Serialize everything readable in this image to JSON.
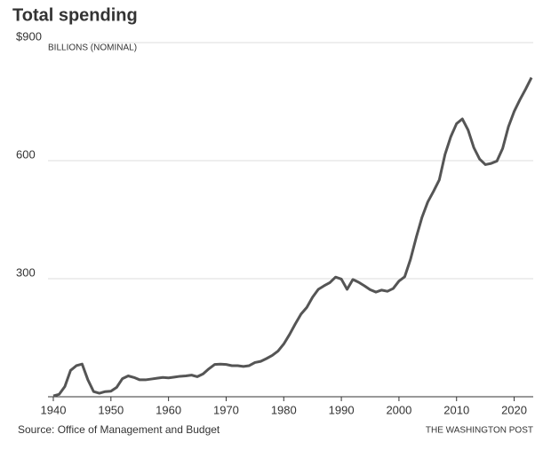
{
  "chart_data": {
    "type": "line",
    "title": "Total spending",
    "subtitle": "BILLIONS (NOMINAL)",
    "source": "Source: Office of Management and Budget",
    "credit": "THE WASHINGTON POST",
    "x": [
      1940,
      1941,
      1942,
      1943,
      1944,
      1945,
      1946,
      1947,
      1948,
      1949,
      1950,
      1951,
      1952,
      1953,
      1954,
      1955,
      1956,
      1957,
      1958,
      1959,
      1960,
      1961,
      1962,
      1963,
      1964,
      1965,
      1966,
      1967,
      1968,
      1969,
      1970,
      1971,
      1972,
      1973,
      1974,
      1975,
      1976,
      1977,
      1978,
      1979,
      1980,
      1981,
      1982,
      1983,
      1984,
      1985,
      1986,
      1987,
      1988,
      1989,
      1990,
      1991,
      1992,
      1993,
      1994,
      1995,
      1996,
      1997,
      1998,
      1999,
      2000,
      2001,
      2002,
      2003,
      2004,
      2005,
      2006,
      2007,
      2008,
      2009,
      2010,
      2011,
      2012,
      2013,
      2014,
      2015,
      2016,
      2017,
      2018,
      2019,
      2020,
      2021,
      2022,
      2023
    ],
    "series": [
      {
        "color": "#555555",
        "values": [
          2,
          6,
          26,
          67,
          79,
          83,
          43,
          13,
          9,
          13,
          14,
          24,
          46,
          53,
          49,
          43,
          43,
          45,
          47,
          49,
          48,
          50,
          52,
          53,
          55,
          51,
          58,
          71,
          82,
          83,
          82,
          79,
          79,
          77,
          79,
          87,
          90,
          97,
          105,
          116,
          134,
          158,
          185,
          210,
          227,
          253,
          273,
          282,
          290,
          304,
          299,
          273,
          298,
          291,
          282,
          272,
          266,
          271,
          268,
          275,
          294,
          305,
          349,
          405,
          456,
          495,
          522,
          551,
          616,
          661,
          694,
          706,
          678,
          633,
          604,
          590,
          593,
          599,
          631,
          686,
          725,
          755,
          782,
          811
        ]
      }
    ],
    "xlim": [
      1940,
      2023
    ],
    "xticks": [
      1940,
      1950,
      1960,
      1970,
      1980,
      1990,
      2000,
      2010,
      2020
    ],
    "ylim": [
      0,
      900
    ],
    "yticks": [
      300,
      600,
      {
        "value": 900,
        "label": "$900"
      }
    ],
    "grid": true
  }
}
